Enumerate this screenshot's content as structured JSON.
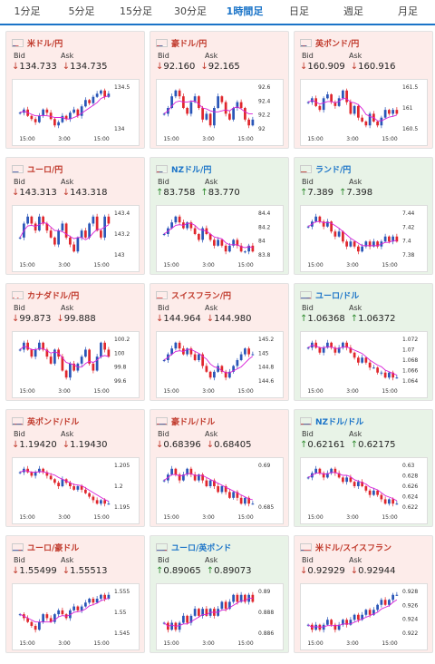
{
  "tabs": [
    {
      "label": "1分足",
      "active": false
    },
    {
      "label": "5分足",
      "active": false
    },
    {
      "label": "15分足",
      "active": false
    },
    {
      "label": "30分足",
      "active": false
    },
    {
      "label": "1時間足",
      "active": true
    },
    {
      "label": "日足",
      "active": false
    },
    {
      "label": "週足",
      "active": false
    },
    {
      "label": "月足",
      "active": false
    }
  ],
  "colors": {
    "up_candle": "#2a56b8",
    "down_candle": "#e0272d",
    "ma_line": "#d81fd8",
    "accent": "#1b74c8"
  },
  "cards": [
    {
      "pair": "米ドル/円",
      "flag": "us-jp",
      "trend": "down",
      "bid_label": "Bid",
      "ask_label": "Ask",
      "bid": "134.733",
      "ask": "134.735",
      "x_labels": [
        "15:00",
        "3:00",
        "15:00"
      ],
      "y_labels": [
        "134.5",
        "134"
      ],
      "series": [
        134.2,
        134.3,
        134.1,
        134.0,
        133.9,
        134.1,
        134.3,
        134.2,
        134.0,
        133.8,
        133.9,
        134.1,
        134.0,
        134.2,
        134.3,
        134.1,
        134.4,
        134.6,
        134.5,
        134.7,
        134.8,
        134.9,
        134.7,
        134.8
      ]
    },
    {
      "pair": "豪ドル/円",
      "flag": "au-jp",
      "trend": "down",
      "bid_label": "Bid",
      "ask_label": "Ask",
      "bid": "92.160",
      "ask": "92.165",
      "x_labels": [
        "15:00",
        "3:00",
        "15:00"
      ],
      "y_labels": [
        "92.6",
        "92.4",
        "92.2",
        "92"
      ],
      "series": [
        92.2,
        92.3,
        92.5,
        92.6,
        92.5,
        92.3,
        92.2,
        92.4,
        92.5,
        92.3,
        92.1,
        92.2,
        92.0,
        92.3,
        92.5,
        92.4,
        92.2,
        92.1,
        92.3,
        92.4,
        92.3,
        92.1,
        92.0,
        92.1
      ]
    },
    {
      "pair": "英ポンド/円",
      "flag": "gb-jp",
      "trend": "down",
      "bid_label": "Bid",
      "ask_label": "Ask",
      "bid": "160.909",
      "ask": "160.916",
      "x_labels": [
        "15:00",
        "3:00",
        "15:00"
      ],
      "y_labels": [
        "161.5",
        "161",
        "160.5"
      ],
      "series": [
        161.2,
        161.3,
        161.1,
        161.0,
        161.3,
        161.4,
        161.2,
        161.1,
        161.3,
        161.5,
        161.2,
        160.9,
        161.1,
        160.8,
        160.7,
        160.6,
        160.9,
        160.7,
        160.6,
        160.8,
        161.0,
        160.9,
        161.0,
        160.9
      ]
    },
    {
      "pair": "ユーロ/円",
      "flag": "eu-jp",
      "trend": "down",
      "bid_label": "Bid",
      "ask_label": "Ask",
      "bid": "143.313",
      "ask": "143.318",
      "x_labels": [
        "15:00",
        "3:00",
        "15:00"
      ],
      "y_labels": [
        "143.4",
        "143.2",
        "143"
      ],
      "series": [
        143.1,
        143.3,
        143.4,
        143.3,
        143.2,
        143.4,
        143.3,
        143.2,
        143.1,
        143.0,
        143.2,
        143.3,
        143.1,
        143.0,
        142.9,
        143.1,
        143.2,
        143.1,
        143.3,
        143.4,
        143.2,
        143.1,
        143.4,
        143.3
      ]
    },
    {
      "pair": "NZドル/円",
      "flag": "nz-jp",
      "trend": "up",
      "bid_label": "Bid",
      "ask_label": "Ask",
      "bid": "83.758",
      "ask": "83.770",
      "x_labels": [
        "15:00",
        "3:00",
        "15:00"
      ],
      "y_labels": [
        "84.4",
        "84.2",
        "84",
        "83.8"
      ],
      "series": [
        84.1,
        84.2,
        84.3,
        84.4,
        84.3,
        84.2,
        84.3,
        84.2,
        84.1,
        84.0,
        84.2,
        84.1,
        84.0,
        83.9,
        84.0,
        83.9,
        83.8,
        83.9,
        84.0,
        83.9,
        83.8,
        83.8,
        83.9,
        83.8
      ]
    },
    {
      "pair": "ランド/円",
      "flag": "za-jp",
      "trend": "up",
      "bid_label": "Bid",
      "ask_label": "Ask",
      "bid": "7.389",
      "ask": "7.398",
      "x_labels": [
        "15:00",
        "3:00",
        "15:00"
      ],
      "y_labels": [
        "7.44",
        "7.42",
        "7.4",
        "7.38"
      ],
      "series": [
        7.42,
        7.43,
        7.44,
        7.43,
        7.42,
        7.43,
        7.41,
        7.4,
        7.41,
        7.39,
        7.38,
        7.39,
        7.38,
        7.37,
        7.38,
        7.39,
        7.38,
        7.39,
        7.38,
        7.39,
        7.4,
        7.39,
        7.4,
        7.39
      ]
    },
    {
      "pair": "カナダドル/円",
      "flag": "ca-jp",
      "trend": "down",
      "bid_label": "Bid",
      "ask_label": "Ask",
      "bid": "99.873",
      "ask": "99.888",
      "x_labels": [
        "15:00",
        "3:00",
        "15:00"
      ],
      "y_labels": [
        "100.2",
        "100",
        "99.8",
        "99.6"
      ],
      "series": [
        100.0,
        100.1,
        100.0,
        99.9,
        100.0,
        100.1,
        100.0,
        99.9,
        99.8,
        100.0,
        99.9,
        99.7,
        99.6,
        99.8,
        99.7,
        99.8,
        99.9,
        100.0,
        99.8,
        99.7,
        99.9,
        100.1,
        100.0,
        99.9
      ]
    },
    {
      "pair": "スイスフラン/円",
      "flag": "ch-jp",
      "trend": "down",
      "bid_label": "Bid",
      "ask_label": "Ask",
      "bid": "144.964",
      "ask": "144.980",
      "x_labels": [
        "15:00",
        "3:00",
        "15:00"
      ],
      "y_labels": [
        "145.2",
        "145",
        "144.8",
        "144.6"
      ],
      "series": [
        144.9,
        145.0,
        145.1,
        145.2,
        145.1,
        145.0,
        145.1,
        145.0,
        144.9,
        145.0,
        144.8,
        144.7,
        144.6,
        144.7,
        144.8,
        144.7,
        144.6,
        144.7,
        144.8,
        144.9,
        145.0,
        145.1,
        145.0,
        145.0
      ]
    },
    {
      "pair": "ユーロ/ドル",
      "flag": "eu-us",
      "trend": "up",
      "bid_label": "Bid",
      "ask_label": "Ask",
      "bid": "1.06368",
      "ask": "1.06372",
      "x_labels": [
        "15:00",
        "3:00",
        "15:00"
      ],
      "y_labels": [
        "1.072",
        "1.07",
        "1.068",
        "1.066",
        "1.064"
      ],
      "series": [
        1.07,
        1.071,
        1.07,
        1.069,
        1.07,
        1.071,
        1.07,
        1.069,
        1.07,
        1.071,
        1.07,
        1.069,
        1.068,
        1.067,
        1.068,
        1.067,
        1.066,
        1.066,
        1.065,
        1.065,
        1.064,
        1.065,
        1.064,
        1.064
      ]
    },
    {
      "pair": "英ポンド/ドル",
      "flag": "gb-us",
      "trend": "down",
      "bid_label": "Bid",
      "ask_label": "Ask",
      "bid": "1.19420",
      "ask": "1.19430",
      "x_labels": [
        "15:00",
        "3:00",
        "15:00"
      ],
      "y_labels": [
        "1.205",
        "1.2",
        "1.195"
      ],
      "series": [
        1.203,
        1.204,
        1.203,
        1.202,
        1.203,
        1.204,
        1.203,
        1.202,
        1.201,
        1.2,
        1.199,
        1.201,
        1.2,
        1.199,
        1.198,
        1.199,
        1.198,
        1.197,
        1.196,
        1.195,
        1.194,
        1.195,
        1.194,
        1.194
      ]
    },
    {
      "pair": "豪ドル/ドル",
      "flag": "au-us",
      "trend": "down",
      "bid_label": "Bid",
      "ask_label": "Ask",
      "bid": "0.68396",
      "ask": "0.68405",
      "x_labels": [
        "15:00",
        "3:00",
        "15:00"
      ],
      "y_labels": [
        "0.69",
        "0.685"
      ],
      "series": [
        0.688,
        0.689,
        0.69,
        0.689,
        0.688,
        0.689,
        0.69,
        0.689,
        0.688,
        0.689,
        0.688,
        0.687,
        0.688,
        0.687,
        0.686,
        0.687,
        0.686,
        0.685,
        0.686,
        0.685,
        0.684,
        0.685,
        0.684,
        0.684
      ]
    },
    {
      "pair": "NZドル/ドル",
      "flag": "nz-us",
      "trend": "up",
      "bid_label": "Bid",
      "ask_label": "Ask",
      "bid": "0.62161",
      "ask": "0.62175",
      "x_labels": [
        "15:00",
        "3:00",
        "15:00"
      ],
      "y_labels": [
        "0.63",
        "0.628",
        "0.626",
        "0.624",
        "0.622"
      ],
      "series": [
        0.628,
        0.629,
        0.63,
        0.629,
        0.628,
        0.629,
        0.63,
        0.629,
        0.628,
        0.627,
        0.628,
        0.627,
        0.626,
        0.627,
        0.626,
        0.625,
        0.624,
        0.625,
        0.624,
        0.623,
        0.622,
        0.623,
        0.622,
        0.622
      ]
    },
    {
      "pair": "ユーロ/豪ドル",
      "flag": "eu-au",
      "trend": "down",
      "bid_label": "Bid",
      "ask_label": "Ask",
      "bid": "1.55499",
      "ask": "1.55513",
      "x_labels": [
        "15:00",
        "3:00",
        "15:00"
      ],
      "y_labels": [
        "1.555",
        "1.55",
        "1.545"
      ],
      "series": [
        1.55,
        1.549,
        1.548,
        1.547,
        1.546,
        1.548,
        1.55,
        1.549,
        1.548,
        1.55,
        1.551,
        1.55,
        1.549,
        1.551,
        1.552,
        1.551,
        1.552,
        1.553,
        1.554,
        1.553,
        1.554,
        1.555,
        1.554,
        1.555
      ]
    },
    {
      "pair": "ユーロ/英ポンド",
      "flag": "eu-gb",
      "trend": "up",
      "bid_label": "Bid",
      "ask_label": "Ask",
      "bid": "0.89065",
      "ask": "0.89073",
      "x_labels": [
        "15:00",
        "3:00",
        "15:00"
      ],
      "y_labels": [
        "0.89",
        "0.888",
        "0.886"
      ],
      "series": [
        0.887,
        0.886,
        0.887,
        0.886,
        0.887,
        0.888,
        0.887,
        0.888,
        0.889,
        0.888,
        0.889,
        0.888,
        0.889,
        0.888,
        0.889,
        0.89,
        0.889,
        0.89,
        0.891,
        0.89,
        0.891,
        0.89,
        0.891,
        0.89
      ]
    },
    {
      "pair": "米ドル/スイスフラン",
      "flag": "us-ch",
      "trend": "down",
      "bid_label": "Bid",
      "ask_label": "Ask",
      "bid": "0.92929",
      "ask": "0.92944",
      "x_labels": [
        "15:00",
        "3:00",
        "15:00"
      ],
      "y_labels": [
        "0.928",
        "0.926",
        "0.924",
        "0.922"
      ],
      "series": [
        0.923,
        0.922,
        0.923,
        0.922,
        0.923,
        0.924,
        0.923,
        0.922,
        0.923,
        0.924,
        0.923,
        0.924,
        0.925,
        0.924,
        0.925,
        0.926,
        0.925,
        0.926,
        0.927,
        0.928,
        0.927,
        0.928,
        0.929,
        0.929
      ]
    }
  ]
}
